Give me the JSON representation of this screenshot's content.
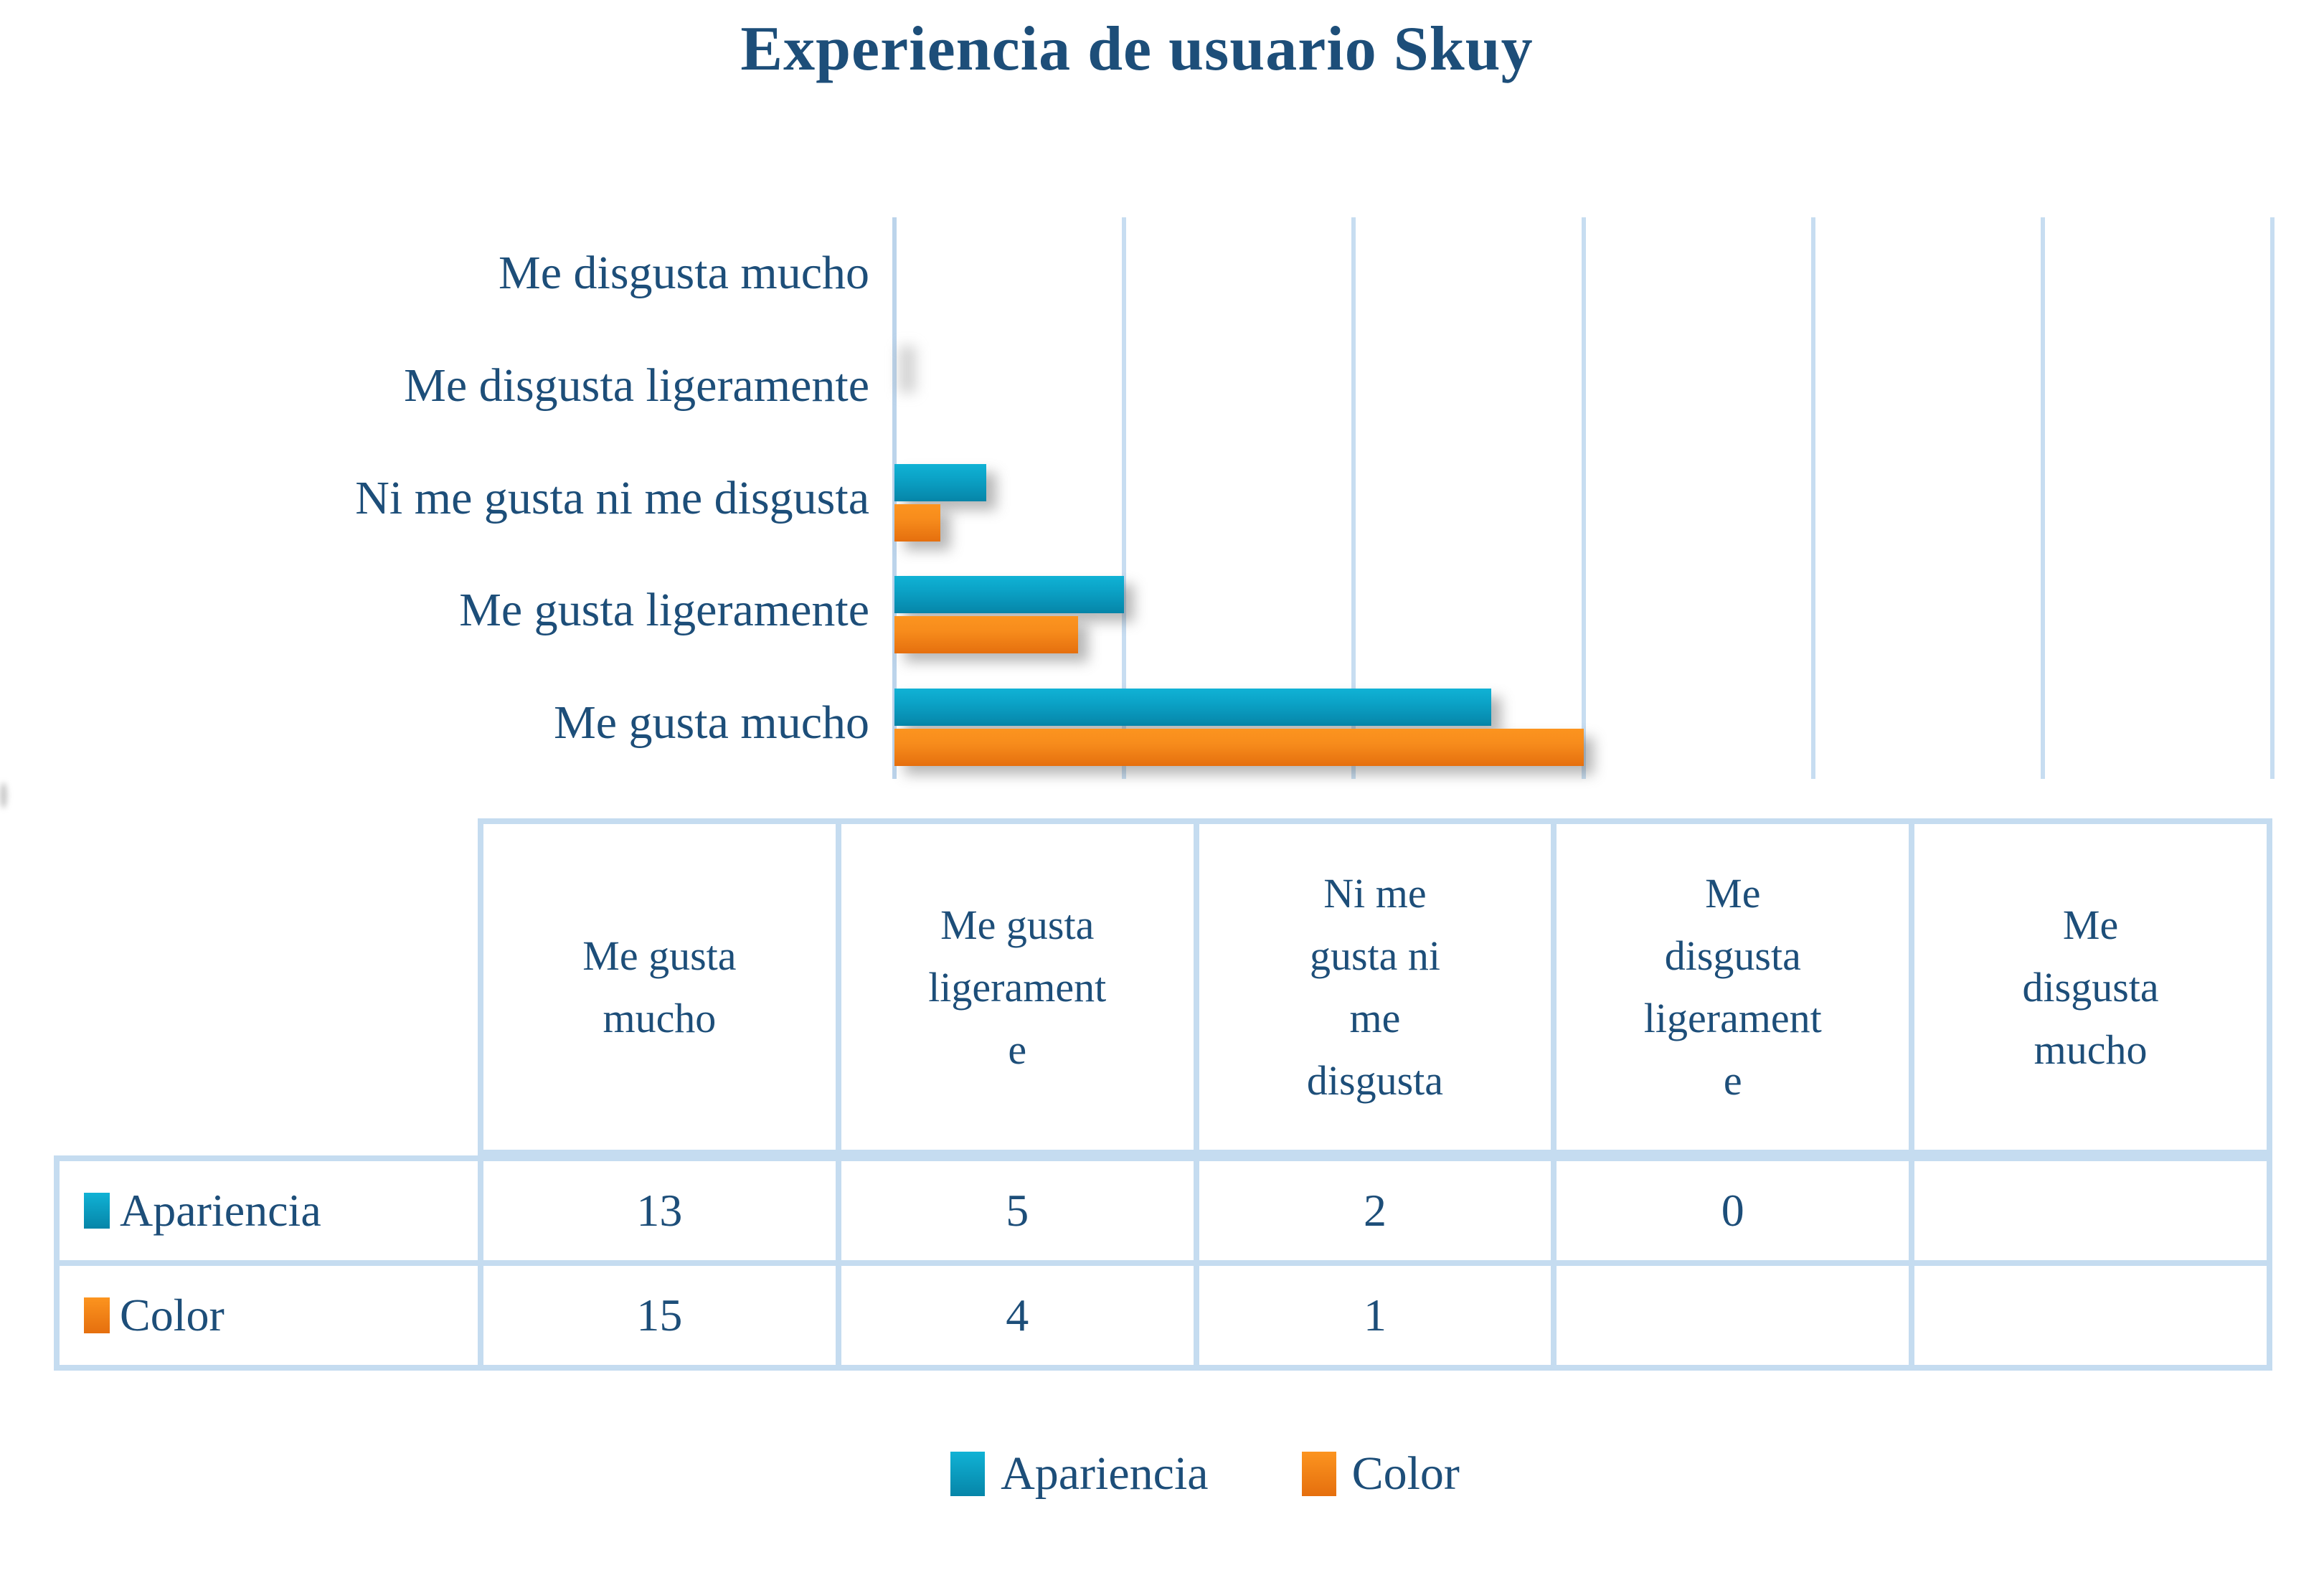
{
  "title": "Experiencia de usuario Skuy",
  "colors": {
    "teal_top": "#10B2D5",
    "teal_bottom": "#0685A8",
    "orange_top": "#FC941F",
    "orange_bottom": "#E56F0E",
    "text_blue": "#1D4E79",
    "grid_blue": "#C7DDF1",
    "table_border_blue": "#C5DCF0"
  },
  "chart_data": {
    "type": "bar",
    "orientation": "horizontal",
    "title": "Experiencia de usuario Skuy",
    "categories_top_to_bottom": [
      "Me disgusta mucho",
      "Me disgusta ligeramente",
      "Ni me gusta ni me disgusta",
      "Me gusta ligeramente",
      "Me gusta mucho"
    ],
    "series": [
      {
        "name": "Apariencia",
        "swatch": "teal",
        "values_by_category": [
          null,
          0,
          2,
          5,
          13
        ]
      },
      {
        "name": "Color",
        "swatch": "orange",
        "values_by_category": [
          null,
          null,
          1,
          4,
          15
        ]
      }
    ],
    "x_axis": {
      "min": 0,
      "max": 30,
      "gridline_step": 5,
      "tick_labels_visible": false
    },
    "grid": "vertical-only",
    "legend_position": "bottom",
    "value_axis_labels_shown": false
  },
  "table": {
    "column_headers": [
      "Me gusta\nmucho",
      "Me gusta\nligerament\ne",
      "Ni me\ngusta ni\nme\ndisgusta",
      "Me\ndisgusta\nligerament\ne",
      "Me\ndisgusta\nmucho"
    ],
    "rows": [
      {
        "label": "Apariencia",
        "swatch": "teal",
        "values": [
          "13",
          "5",
          "2",
          "0",
          ""
        ]
      },
      {
        "label": "Color",
        "swatch": "orange",
        "values": [
          "15",
          "4",
          "1",
          "",
          ""
        ]
      }
    ]
  },
  "legend": {
    "items": [
      {
        "label": "Apariencia",
        "swatch": "teal"
      },
      {
        "label": "Color",
        "swatch": "orange"
      }
    ]
  }
}
